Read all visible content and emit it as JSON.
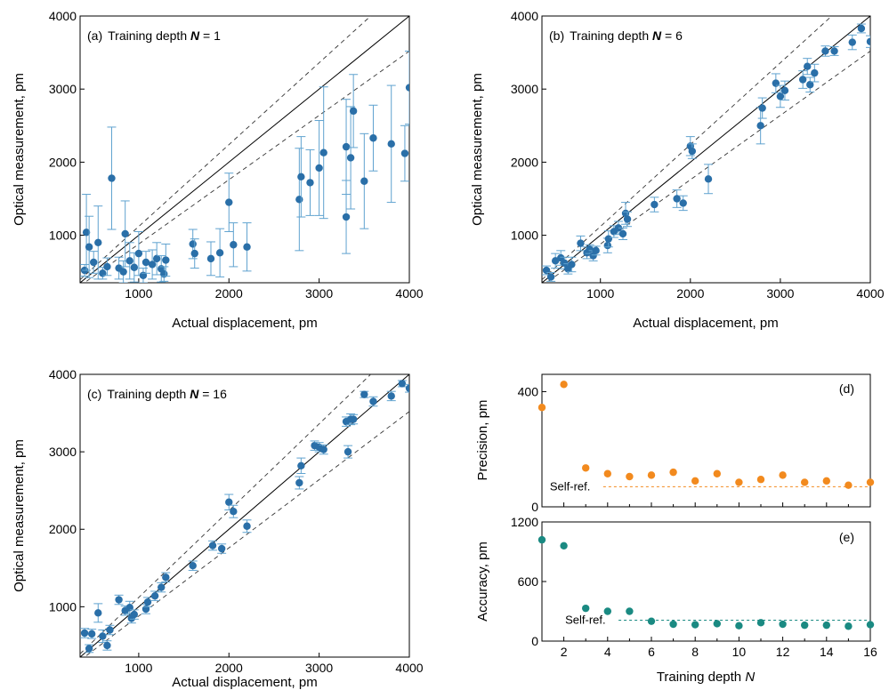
{
  "chart_data": [
    {
      "id": "a",
      "type": "scatter",
      "panel_label": "(a)",
      "title_prefix": "Training depth ",
      "title_var": "N",
      "title_suffix": " = 1",
      "xlabel": "Actual displacement, pm",
      "ylabel": "Optical measurement, pm",
      "xlim": [
        350,
        4000
      ],
      "ylim": [
        350,
        4000
      ],
      "xticks": [
        1000,
        2000,
        3000,
        4000
      ],
      "yticks": [
        1000,
        2000,
        3000,
        4000
      ],
      "band": [
        0.88,
        1.12
      ],
      "colors": {
        "point": "#2a6fa8",
        "error": "#5fa2cf"
      },
      "points": [
        [
          400,
          520,
          80
        ],
        [
          420,
          1040,
          520
        ],
        [
          450,
          840,
          420
        ],
        [
          500,
          630,
          150
        ],
        [
          550,
          900,
          500
        ],
        [
          600,
          480,
          80
        ],
        [
          650,
          570,
          120
        ],
        [
          700,
          1780,
          700
        ],
        [
          780,
          550,
          150
        ],
        [
          830,
          500,
          150
        ],
        [
          850,
          1020,
          450
        ],
        [
          900,
          650,
          250
        ],
        [
          950,
          560,
          200
        ],
        [
          1000,
          750,
          300
        ],
        [
          1050,
          450,
          100
        ],
        [
          1080,
          630,
          150
        ],
        [
          1150,
          600,
          200
        ],
        [
          1200,
          680,
          220
        ],
        [
          1250,
          540,
          180
        ],
        [
          1280,
          470,
          100
        ],
        [
          1300,
          660,
          220
        ],
        [
          1600,
          880,
          200
        ],
        [
          1620,
          750,
          200
        ],
        [
          1800,
          680,
          230
        ],
        [
          1900,
          760,
          330
        ],
        [
          2000,
          1450,
          400
        ],
        [
          2050,
          870,
          300
        ],
        [
          2200,
          840,
          330
        ],
        [
          2780,
          1490,
          700
        ],
        [
          2800,
          1800,
          550
        ],
        [
          2900,
          1720,
          450
        ],
        [
          3000,
          1920,
          650
        ],
        [
          3050,
          2130,
          900
        ],
        [
          3300,
          1250,
          500
        ],
        [
          3300,
          2210,
          650
        ],
        [
          3350,
          2060,
          700
        ],
        [
          3380,
          2700,
          500
        ],
        [
          3500,
          1740,
          650
        ],
        [
          3600,
          2330,
          450
        ],
        [
          3800,
          2250,
          800
        ],
        [
          3950,
          2120,
          380
        ],
        [
          4000,
          3020,
          500
        ]
      ]
    },
    {
      "id": "b",
      "type": "scatter",
      "panel_label": "(b)",
      "title_prefix": "Training depth ",
      "title_var": "N",
      "title_suffix": " = 6",
      "xlabel": "Actual displacement, pm",
      "ylabel": "Optical measurement, pm",
      "xlim": [
        350,
        4000
      ],
      "ylim": [
        350,
        4000
      ],
      "xticks": [
        1000,
        2000,
        3000,
        4000
      ],
      "yticks": [
        1000,
        2000,
        3000,
        4000
      ],
      "band": [
        0.88,
        1.12
      ],
      "colors": {
        "point": "#2a6fa8",
        "error": "#5fa2cf"
      },
      "points": [
        [
          400,
          520,
          60
        ],
        [
          450,
          430,
          60
        ],
        [
          500,
          650,
          100
        ],
        [
          560,
          690,
          100
        ],
        [
          600,
          620,
          80
        ],
        [
          640,
          540,
          70
        ],
        [
          680,
          600,
          100
        ],
        [
          780,
          890,
          100
        ],
        [
          850,
          760,
          80
        ],
        [
          880,
          810,
          60
        ],
        [
          920,
          720,
          70
        ],
        [
          950,
          790,
          60
        ],
        [
          1080,
          860,
          100
        ],
        [
          1090,
          950,
          110
        ],
        [
          1150,
          1050,
          80
        ],
        [
          1200,
          1100,
          90
        ],
        [
          1250,
          1020,
          80
        ],
        [
          1280,
          1300,
          150
        ],
        [
          1300,
          1220,
          100
        ],
        [
          1600,
          1420,
          100
        ],
        [
          1850,
          1500,
          120
        ],
        [
          1920,
          1440,
          100
        ],
        [
          2000,
          2220,
          130
        ],
        [
          2020,
          2150,
          100
        ],
        [
          2200,
          1770,
          200
        ],
        [
          2780,
          2500,
          250
        ],
        [
          2800,
          2740,
          140
        ],
        [
          2950,
          3080,
          130
        ],
        [
          3000,
          2900,
          150
        ],
        [
          3050,
          2980,
          130
        ],
        [
          3250,
          3130,
          120
        ],
        [
          3300,
          3310,
          110
        ],
        [
          3330,
          3060,
          100
        ],
        [
          3380,
          3220,
          120
        ],
        [
          3500,
          3520,
          70
        ],
        [
          3600,
          3520,
          60
        ],
        [
          3800,
          3640,
          100
        ],
        [
          3900,
          3830,
          60
        ],
        [
          4000,
          3650,
          80
        ]
      ]
    },
    {
      "id": "c",
      "type": "scatter",
      "panel_label": "(c)",
      "title_prefix": "Training depth ",
      "title_var": "N",
      "title_suffix": " = 16",
      "xlabel": "Actual displacement, pm",
      "ylabel": "Optical measurement, pm",
      "xlim": [
        350,
        4000
      ],
      "ylim": [
        350,
        4000
      ],
      "xticks": [
        1000,
        2000,
        3000,
        4000
      ],
      "yticks": [
        1000,
        2000,
        3000,
        4000
      ],
      "band": [
        0.88,
        1.12
      ],
      "colors": {
        "point": "#2a6fa8",
        "error": "#5fa2cf"
      },
      "points": [
        [
          400,
          660,
          60
        ],
        [
          450,
          460,
          50
        ],
        [
          480,
          650,
          60
        ],
        [
          550,
          920,
          120
        ],
        [
          600,
          620,
          80
        ],
        [
          650,
          500,
          60
        ],
        [
          680,
          700,
          60
        ],
        [
          780,
          1090,
          60
        ],
        [
          850,
          950,
          60
        ],
        [
          900,
          990,
          80
        ],
        [
          920,
          850,
          60
        ],
        [
          950,
          900,
          60
        ],
        [
          1080,
          970,
          60
        ],
        [
          1100,
          1060,
          60
        ],
        [
          1180,
          1140,
          60
        ],
        [
          1250,
          1250,
          60
        ],
        [
          1300,
          1380,
          60
        ],
        [
          1600,
          1530,
          60
        ],
        [
          1820,
          1790,
          60
        ],
        [
          1920,
          1750,
          60
        ],
        [
          2000,
          2350,
          100
        ],
        [
          2050,
          2230,
          80
        ],
        [
          2200,
          2040,
          80
        ],
        [
          2780,
          2600,
          80
        ],
        [
          2800,
          2820,
          100
        ],
        [
          2950,
          3080,
          60
        ],
        [
          3000,
          3060,
          60
        ],
        [
          3050,
          3030,
          60
        ],
        [
          3300,
          3390,
          60
        ],
        [
          3320,
          3000,
          80
        ],
        [
          3350,
          3420,
          70
        ],
        [
          3380,
          3420,
          60
        ],
        [
          3500,
          3740,
          40
        ],
        [
          3600,
          3650,
          60
        ],
        [
          3800,
          3720,
          60
        ],
        [
          3920,
          3880,
          40
        ],
        [
          4000,
          3820,
          50
        ]
      ]
    },
    {
      "id": "d",
      "type": "scatter",
      "panel_label": "(d)",
      "ylabel": "Precision, pm",
      "xlim": [
        1,
        16
      ],
      "ylim": [
        0,
        460
      ],
      "yticks": [
        0,
        400
      ],
      "xticks": [
        2,
        4,
        6,
        8,
        10,
        12,
        14,
        16
      ],
      "ref_label": "Self-ref.",
      "ref_value": 70,
      "ref_from": 3.8,
      "color": "#f28a1e",
      "x": [
        1,
        2,
        3,
        4,
        5,
        6,
        7,
        8,
        9,
        10,
        11,
        12,
        13,
        14,
        15,
        16
      ],
      "y": [
        345,
        425,
        135,
        115,
        105,
        110,
        120,
        90,
        115,
        85,
        95,
        110,
        85,
        90,
        75,
        85
      ]
    },
    {
      "id": "e",
      "type": "scatter",
      "panel_label": "(e)",
      "ylabel": "Accuracy, pm",
      "xlabel_prefix": "Training depth ",
      "xlabel_var": "N",
      "xlim": [
        1,
        16
      ],
      "ylim": [
        0,
        1200
      ],
      "yticks": [
        0,
        600,
        1200
      ],
      "xticks": [
        2,
        4,
        6,
        8,
        10,
        12,
        14,
        16
      ],
      "ref_label": "Self-ref.",
      "ref_value": 210,
      "ref_from": 4.5,
      "color": "#1a8a82",
      "x": [
        1,
        2,
        3,
        4,
        5,
        6,
        7,
        8,
        9,
        10,
        11,
        12,
        13,
        14,
        15,
        16
      ],
      "y": [
        1020,
        960,
        330,
        300,
        300,
        200,
        170,
        165,
        175,
        155,
        185,
        170,
        160,
        160,
        150,
        165
      ]
    }
  ]
}
